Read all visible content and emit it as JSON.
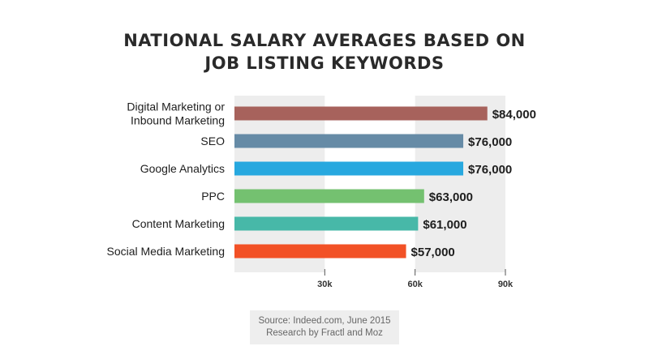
{
  "title": "NATIONAL SALARY AVERAGES BASED ON\nJOB LISTING KEYWORDS",
  "source": {
    "line1": "Source: Indeed.com, June 2015",
    "line2": "Research by Fractl and Moz"
  },
  "chart_data": {
    "type": "bar",
    "orientation": "horizontal",
    "title": "NATIONAL SALARY AVERAGES BASED ON JOB LISTING KEYWORDS",
    "categories": [
      "Digital Marketing or\nInbound Marketing",
      "SEO",
      "Google Analytics",
      "PPC",
      "Content Marketing",
      "Social Media Marketing"
    ],
    "values": [
      84000,
      76000,
      76000,
      63000,
      61000,
      57000
    ],
    "value_labels": [
      "$84,000",
      "$76,000",
      "$76,000",
      "$63,000",
      "$61,000",
      "$57,000"
    ],
    "colors": [
      "#a7625c",
      "#668ba6",
      "#27a8df",
      "#74c170",
      "#47b8a8",
      "#f25126"
    ],
    "xlim": [
      0,
      90000
    ],
    "xticks": [
      30000,
      60000,
      90000
    ],
    "xtick_labels": [
      "30k",
      "60k",
      "90k"
    ],
    "band_color": "#ededed",
    "grid": false,
    "legend": "none"
  }
}
